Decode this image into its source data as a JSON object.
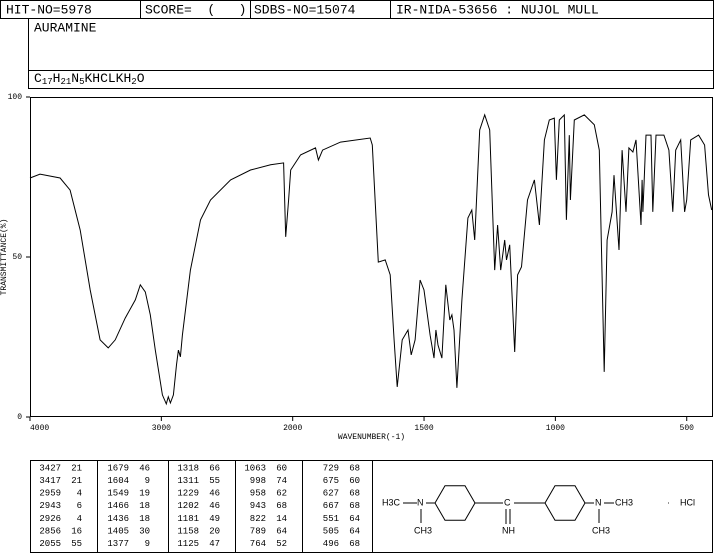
{
  "header": {
    "hit_no": "HIT-NO=5978",
    "score": "SCORE=  (   )",
    "sdbs_no": "SDBS-NO=15074",
    "ir": "IR-NIDA-53656 : NUJOL MULL"
  },
  "name": "AURAMINE",
  "formula": [
    "C",
    "17",
    "H",
    "21",
    "N",
    "5",
    "KHCLKH",
    "2",
    "O"
  ],
  "chart_data": {
    "type": "line",
    "xlabel": "WAVENUMBER(-1)",
    "ylabel": "TRANSMITTANCE(%)",
    "color": "#000000",
    "xlim": [
      4000,
      400
    ],
    "xticks": [
      4000,
      3000,
      2000,
      1500,
      1000,
      500
    ],
    "x_scale_break": 2000,
    "x_scale_ratio": 2,
    "ylim": [
      0,
      100
    ],
    "yticks": [
      0,
      50,
      100
    ],
    "x": [
      4000,
      3924,
      3771,
      3695,
      3618,
      3542,
      3466,
      3405,
      3351,
      3275,
      3198,
      3160,
      3122,
      3084,
      3046,
      2992,
      2962,
      2947,
      2931,
      2908,
      2885,
      2870,
      2855,
      2840,
      2779,
      2702,
      2626,
      2473,
      2321,
      2168,
      2069,
      2053,
      2031,
      2015,
      1970,
      1913,
      1902,
      1886,
      1818,
      1705,
      1697,
      1674,
      1648,
      1629,
      1614,
      1602,
      1583,
      1561,
      1549,
      1534,
      1515,
      1500,
      1477,
      1462,
      1455,
      1447,
      1432,
      1417,
      1402,
      1394,
      1386,
      1375,
      1356,
      1333,
      1318,
      1307,
      1288,
      1269,
      1250,
      1231,
      1220,
      1208,
      1193,
      1186,
      1174,
      1155,
      1144,
      1129,
      1106,
      1080,
      1061,
      1042,
      1023,
      1004,
      996,
      985,
      966,
      958,
      947,
      943,
      928,
      890,
      852,
      833,
      814,
      803,
      784,
      777,
      758,
      746,
      731,
      720,
      705,
      693,
      674,
      670,
      667,
      655,
      636,
      629,
      617,
      587,
      568,
      553,
      542,
      523,
      508,
      500,
      485,
      455,
      432,
      417,
      405
    ],
    "values": [
      74.7,
      75.9,
      74.7,
      70.9,
      58.4,
      39.7,
      24.1,
      21.6,
      24.1,
      30.9,
      36.6,
      41.3,
      39.1,
      31.9,
      20.9,
      6.9,
      4.1,
      6.3,
      4.4,
      6.9,
      16.3,
      20.9,
      18.8,
      25.6,
      45.9,
      61.6,
      67.8,
      74.1,
      77.2,
      78.8,
      79.4,
      56.3,
      67.8,
      77.2,
      81.9,
      84.1,
      80.3,
      83.4,
      85.9,
      87.2,
      85.0,
      48.4,
      49.1,
      44.4,
      24.1,
      9.4,
      24.1,
      27.2,
      19.4,
      24.1,
      42.8,
      39.7,
      25.6,
      18.4,
      27.2,
      22.5,
      18.4,
      41.3,
      30.3,
      31.9,
      27.2,
      9.1,
      36.6,
      62.2,
      64.7,
      55.3,
      89.7,
      94.4,
      89.7,
      45.9,
      60.0,
      45.9,
      55.3,
      49.1,
      53.8,
      20.3,
      44.4,
      46.9,
      67.8,
      74.1,
      60.0,
      86.6,
      92.8,
      93.4,
      74.1,
      92.8,
      94.4,
      61.6,
      88.1,
      67.8,
      92.8,
      94.4,
      91.3,
      83.4,
      14.1,
      55.3,
      64.1,
      75.6,
      52.2,
      83.4,
      64.1,
      84.1,
      82.8,
      86.6,
      60.0,
      74.1,
      64.1,
      88.1,
      88.1,
      64.1,
      88.1,
      88.1,
      83.4,
      64.1,
      83.4,
      86.6,
      64.1,
      67.8,
      86.6,
      88.1,
      85.0,
      69.4,
      64.7
    ]
  },
  "peak_table": {
    "columns": [
      [
        [
          3427,
          21
        ],
        [
          3417,
          21
        ],
        [
          2959,
          4
        ],
        [
          2943,
          6
        ],
        [
          2926,
          4
        ],
        [
          2856,
          16
        ],
        [
          2055,
          55
        ]
      ],
      [
        [
          1679,
          46
        ],
        [
          1604,
          9
        ],
        [
          1549,
          19
        ],
        [
          1466,
          18
        ],
        [
          1436,
          18
        ],
        [
          1405,
          30
        ],
        [
          1377,
          9
        ]
      ],
      [
        [
          1318,
          66
        ],
        [
          1311,
          55
        ],
        [
          1229,
          46
        ],
        [
          1202,
          46
        ],
        [
          1181,
          49
        ],
        [
          1158,
          20
        ],
        [
          1125,
          47
        ]
      ],
      [
        [
          1063,
          60
        ],
        [
          998,
          74
        ],
        [
          958,
          62
        ],
        [
          943,
          68
        ],
        [
          822,
          14
        ],
        [
          789,
          64
        ],
        [
          764,
          52
        ]
      ],
      [
        [
          729,
          68
        ],
        [
          675,
          60
        ],
        [
          627,
          68
        ],
        [
          667,
          68
        ],
        [
          551,
          64
        ],
        [
          505,
          64
        ],
        [
          496,
          68
        ]
      ]
    ]
  },
  "structure": {
    "labels": [
      "H3C",
      "N",
      "CH3",
      "C",
      "NH",
      "N",
      "CH3",
      "CH3",
      "·",
      "HCl"
    ]
  }
}
